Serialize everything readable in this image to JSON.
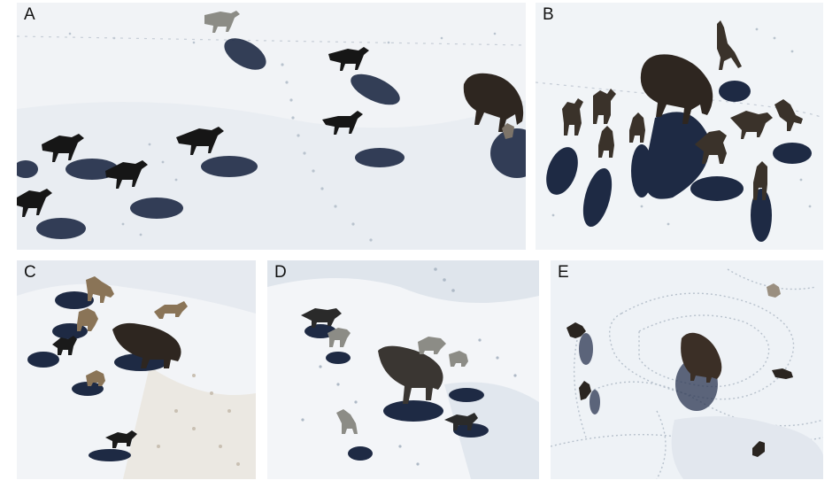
{
  "figure": {
    "panels": [
      {
        "label": "A"
      },
      {
        "label": "B"
      },
      {
        "label": "C"
      },
      {
        "label": "D"
      },
      {
        "label": "E"
      }
    ]
  },
  "colors": {
    "snow": "#f3f5f7",
    "snow_shade": "#e3e8ee",
    "shadow": "#1e2a44",
    "wolf_dark": "#161616",
    "wolf_gray": "#8c8c86",
    "wolf_tan": "#8a7457",
    "bison": "#2e2620",
    "track": "#b7c1cc"
  }
}
